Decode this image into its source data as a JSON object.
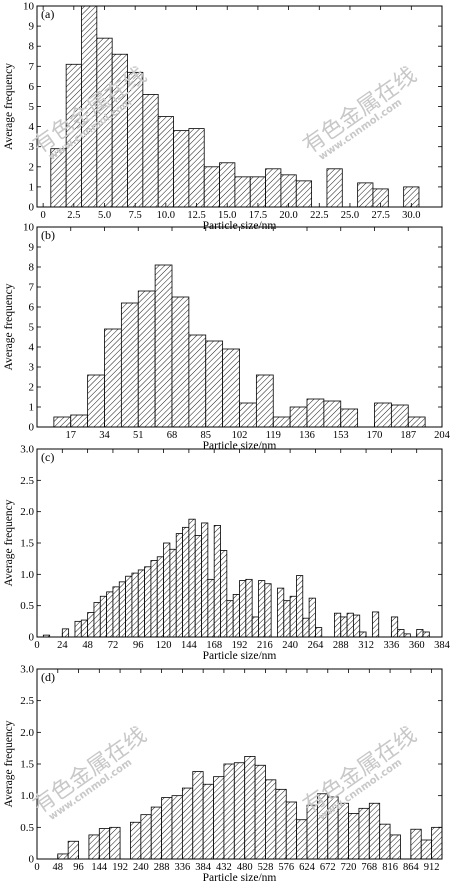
{
  "watermark": {
    "cn": "有色金属在线",
    "url": "www.cnnmol.com"
  },
  "chart_data": [
    {
      "type": "bar",
      "panel_label": "(a)",
      "xlabel": "Particle size/nm",
      "ylabel": "Average frequency",
      "xlim": [
        -0.5,
        32.5
      ],
      "ylim": [
        0,
        10
      ],
      "xticks": [
        0,
        2.5,
        5.0,
        7.5,
        10.0,
        12.5,
        15.0,
        17.5,
        20.0,
        22.5,
        25.0,
        27.5,
        30.0
      ],
      "xticklabels": [
        "0",
        "2.5",
        "5.0",
        "7.5",
        "10.0",
        "12.5",
        "15.0",
        "17.5",
        "20.0",
        "22.5",
        "25.0",
        "27.5",
        "30.0"
      ],
      "yticks": [
        0,
        1,
        2,
        3,
        4,
        5,
        6,
        7,
        8,
        9,
        10
      ],
      "bin_width": 1.25,
      "bin_starts": [
        0.625,
        1.875,
        3.125,
        4.375,
        5.625,
        6.875,
        8.125,
        9.375,
        10.625,
        11.875,
        13.125,
        14.375,
        15.625,
        16.875,
        18.125,
        19.375,
        20.625,
        23.125,
        25.625,
        26.875,
        29.375
      ],
      "values": [
        2.9,
        7.1,
        10.0,
        8.4,
        7.6,
        6.7,
        5.6,
        4.5,
        3.8,
        3.9,
        2.0,
        2.2,
        1.5,
        1.5,
        1.9,
        1.6,
        1.3,
        1.9,
        1.2,
        0.9,
        1.0
      ]
    },
    {
      "type": "bar",
      "panel_label": "(b)",
      "xlabel": "Particle size/nm",
      "ylabel": "Average frequency",
      "xlim": [
        0,
        204
      ],
      "ylim": [
        0,
        10
      ],
      "xticks": [
        17,
        34,
        51,
        68,
        85,
        102,
        119,
        136,
        153,
        170,
        187,
        204
      ],
      "xticklabels": [
        "17",
        "34",
        "51",
        "68",
        "85",
        "102",
        "119",
        "136",
        "153",
        "170",
        "187",
        "204"
      ],
      "yticks": [
        0,
        1,
        2,
        3,
        4,
        5,
        6,
        7,
        8,
        9,
        10
      ],
      "bin_width": 8.5,
      "bin_starts": [
        8.5,
        17,
        25.5,
        34,
        42.5,
        51,
        59.5,
        68,
        76.5,
        85,
        93.5,
        102,
        110.5,
        119,
        127.5,
        136,
        144.5,
        153,
        170,
        178.5,
        187
      ],
      "values": [
        0.5,
        0.6,
        2.6,
        4.9,
        6.2,
        6.8,
        8.1,
        6.5,
        4.6,
        4.3,
        3.9,
        1.2,
        2.6,
        0.5,
        1.0,
        1.4,
        1.3,
        0.9,
        1.2,
        1.1,
        0.5
      ]
    },
    {
      "type": "bar",
      "panel_label": "(c)",
      "xlabel": "Particle size/nm",
      "ylabel": "Average frequency",
      "xlim": [
        0,
        384
      ],
      "ylim": [
        0,
        3.0
      ],
      "xticks": [
        0,
        24,
        48,
        72,
        96,
        120,
        144,
        168,
        192,
        216,
        240,
        264,
        288,
        312,
        336,
        360,
        384
      ],
      "xticklabels": [
        "0",
        "24",
        "48",
        "72",
        "96",
        "120",
        "144",
        "168",
        "192",
        "216",
        "240",
        "264",
        "288",
        "312",
        "336",
        "360",
        "384"
      ],
      "yticks": [
        0,
        0.5,
        1.0,
        1.5,
        2.0,
        2.5,
        3.0
      ],
      "yticklabels": [
        "0",
        "0.5",
        "1.0",
        "1.5",
        "2.0",
        "2.5",
        "3.0"
      ],
      "bin_width": 6,
      "bin_starts": [
        6,
        24,
        36,
        42,
        48,
        54,
        60,
        66,
        72,
        78,
        84,
        90,
        96,
        102,
        108,
        114,
        120,
        126,
        132,
        138,
        144,
        150,
        156,
        162,
        168,
        174,
        180,
        186,
        192,
        198,
        204,
        210,
        216,
        228,
        234,
        240,
        246,
        252,
        258,
        264,
        282,
        288,
        294,
        300,
        306,
        318,
        336,
        342,
        348,
        360,
        366
      ],
      "values": [
        0.03,
        0.13,
        0.25,
        0.27,
        0.39,
        0.55,
        0.65,
        0.72,
        0.8,
        0.88,
        0.97,
        1.02,
        1.07,
        1.12,
        1.22,
        1.28,
        1.5,
        1.4,
        1.65,
        1.75,
        1.88,
        1.62,
        1.82,
        0.92,
        1.78,
        1.38,
        0.58,
        0.68,
        0.9,
        0.92,
        0.32,
        0.9,
        0.85,
        0.78,
        0.58,
        0.65,
        0.98,
        0.3,
        0.62,
        0.15,
        0.38,
        0.32,
        0.38,
        0.35,
        0.08,
        0.4,
        0.32,
        0.12,
        0.05,
        0.12,
        0.08
      ]
    },
    {
      "type": "bar",
      "panel_label": "(d)",
      "xlabel": "Particle size/nm",
      "ylabel": "Average frequency",
      "xlim": [
        0,
        936
      ],
      "ylim": [
        0,
        3.0
      ],
      "xticks": [
        0,
        48,
        96,
        144,
        192,
        240,
        288,
        336,
        384,
        432,
        480,
        528,
        576,
        624,
        672,
        720,
        768,
        816,
        864,
        912
      ],
      "xticklabels": [
        "0",
        "48",
        "96",
        "144",
        "192",
        "240",
        "288",
        "336",
        "384",
        "432",
        "480",
        "528",
        "576",
        "624",
        "672",
        "720",
        "768",
        "816",
        "864",
        "912"
      ],
      "yticks": [
        0,
        0.5,
        1.0,
        1.5,
        2.0,
        2.5,
        3.0
      ],
      "yticklabels": [
        "0",
        "0.5",
        "1.0",
        "1.5",
        "2.0",
        "2.5",
        "3.0"
      ],
      "bin_width": 24,
      "bin_starts": [
        48,
        72,
        120,
        144,
        168,
        216,
        240,
        264,
        288,
        312,
        336,
        360,
        384,
        408,
        432,
        456,
        480,
        504,
        528,
        552,
        576,
        600,
        624,
        648,
        672,
        696,
        720,
        744,
        768,
        792,
        816,
        864,
        888,
        912
      ],
      "values": [
        0.08,
        0.28,
        0.38,
        0.48,
        0.5,
        0.58,
        0.7,
        0.82,
        0.97,
        1.0,
        1.12,
        1.38,
        1.18,
        1.3,
        1.5,
        1.52,
        1.62,
        1.48,
        1.25,
        1.1,
        0.9,
        0.62,
        0.85,
        1.03,
        0.98,
        0.88,
        0.72,
        0.8,
        0.88,
        0.55,
        0.38,
        0.47,
        0.3,
        0.5
      ]
    }
  ]
}
